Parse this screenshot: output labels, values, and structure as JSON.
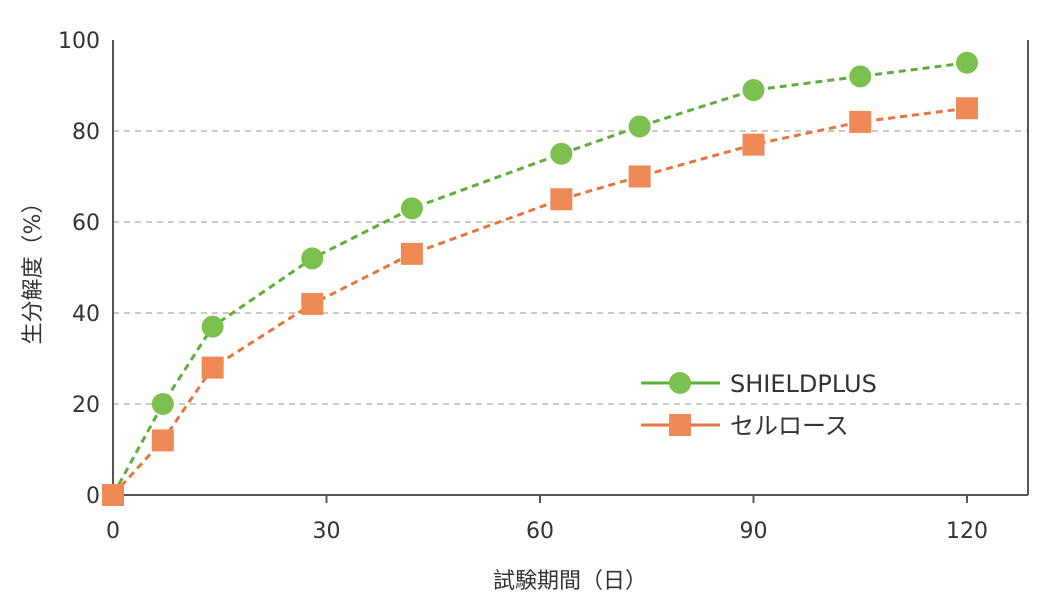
{
  "chart_data": {
    "type": "line",
    "title": "",
    "xlabel": "試験期間（日）",
    "ylabel": "生分解度（%）",
    "xlim": [
      0,
      128
    ],
    "ylim": [
      0,
      100
    ],
    "xticks": [
      0,
      30,
      60,
      90,
      120
    ],
    "yticks": [
      0,
      20,
      40,
      60,
      80,
      100
    ],
    "grid": "horizontal dashed",
    "legend_position": "lower-right",
    "series": [
      {
        "name": "SHIELDPLUS",
        "color": "#7cc04f",
        "line_color": "#5cb03a",
        "marker": "circle",
        "x": [
          0,
          7,
          14,
          28,
          42,
          63,
          74,
          90,
          105,
          120
        ],
        "y": [
          0,
          20,
          37,
          52,
          63,
          75,
          81,
          89,
          92,
          95
        ]
      },
      {
        "name": "セルロース",
        "color": "#ef8a57",
        "line_color": "#e8753f",
        "marker": "square",
        "x": [
          0,
          7,
          14,
          28,
          42,
          63,
          74,
          90,
          105,
          120
        ],
        "y": [
          0,
          12,
          28,
          42,
          53,
          65,
          70,
          77,
          82,
          85
        ]
      }
    ]
  }
}
